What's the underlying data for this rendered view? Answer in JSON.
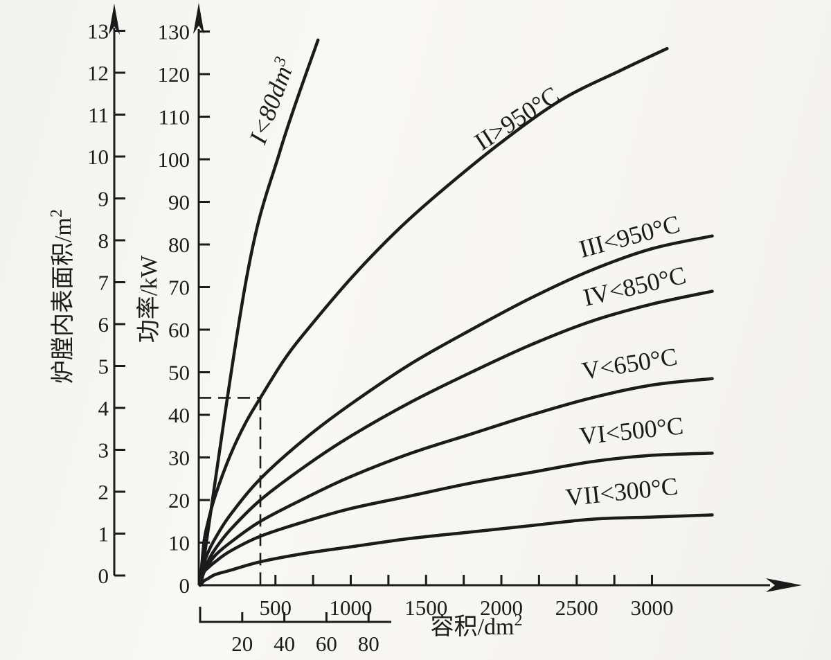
{
  "page": {
    "background": "#f6f5f1",
    "ink": "#1b1b1b"
  },
  "chart_data": {
    "type": "line",
    "title": "",
    "x_axis_main": {
      "title": "容积/dm",
      "title_sup": "2",
      "range": [
        0,
        3950
      ],
      "labeled_ticks": [
        500,
        1000,
        1500,
        2000,
        2500,
        3000
      ],
      "minor_tick_step": 250
    },
    "x_axis_secondary": {
      "ticks": [
        20,
        40,
        60,
        80
      ],
      "max": 90
    },
    "y_axis_power": {
      "title": "功率/kW",
      "range": [
        0,
        130
      ],
      "ticks": [
        0,
        10,
        20,
        30,
        40,
        50,
        60,
        70,
        80,
        90,
        100,
        110,
        120,
        130
      ]
    },
    "y_axis_area": {
      "title": "炉膛内表面积/m",
      "title_sup": "2",
      "range": [
        0,
        13
      ],
      "ticks": [
        0,
        1,
        2,
        3,
        4,
        5,
        6,
        7,
        8,
        9,
        10,
        11,
        12,
        13
      ]
    },
    "series": [
      {
        "id": "I",
        "label_pre": "I<80dm",
        "label_sup": "3",
        "x_scale": "secondary",
        "points": [
          [
            0,
            0
          ],
          [
            22,
            72
          ],
          [
            38,
            102
          ],
          [
            56,
            128
          ]
        ]
      },
      {
        "id": "II",
        "label": "II>950°C",
        "x_scale": "main",
        "points": [
          [
            0,
            0
          ],
          [
            25,
            10
          ],
          [
            50,
            14.5
          ],
          [
            100,
            21
          ],
          [
            200,
            30.5
          ],
          [
            300,
            38
          ],
          [
            400,
            44
          ],
          [
            550,
            52.5
          ],
          [
            700,
            59.5
          ],
          [
            1000,
            72
          ],
          [
            1300,
            83
          ],
          [
            1600,
            92.5
          ],
          [
            2000,
            104
          ],
          [
            2400,
            114
          ],
          [
            2800,
            121
          ],
          [
            3100,
            126
          ]
        ]
      },
      {
        "id": "III",
        "label": "III<950°C",
        "x_scale": "main",
        "points": [
          [
            0,
            0
          ],
          [
            25,
            5
          ],
          [
            50,
            7.5
          ],
          [
            100,
            11
          ],
          [
            200,
            16.5
          ],
          [
            400,
            25
          ],
          [
            700,
            34.5
          ],
          [
            1000,
            42.5
          ],
          [
            1400,
            52
          ],
          [
            1800,
            60
          ],
          [
            2200,
            67.5
          ],
          [
            2600,
            74
          ],
          [
            3000,
            79
          ],
          [
            3400,
            82
          ]
        ]
      },
      {
        "id": "IV",
        "label": "IV<850°C",
        "x_scale": "main",
        "points": [
          [
            0,
            0
          ],
          [
            25,
            3.5
          ],
          [
            50,
            5.5
          ],
          [
            100,
            8.5
          ],
          [
            200,
            13
          ],
          [
            400,
            20
          ],
          [
            700,
            28
          ],
          [
            1000,
            35
          ],
          [
            1400,
            43
          ],
          [
            1800,
            50
          ],
          [
            2200,
            56.5
          ],
          [
            2600,
            62
          ],
          [
            3000,
            66
          ],
          [
            3400,
            69
          ]
        ]
      },
      {
        "id": "V",
        "label": "V<650°C",
        "x_scale": "main",
        "points": [
          [
            0,
            0
          ],
          [
            25,
            3
          ],
          [
            50,
            4.5
          ],
          [
            100,
            7
          ],
          [
            200,
            10
          ],
          [
            400,
            15
          ],
          [
            700,
            20.5
          ],
          [
            1000,
            25.5
          ],
          [
            1400,
            31
          ],
          [
            1800,
            35.5
          ],
          [
            2200,
            40
          ],
          [
            2600,
            44
          ],
          [
            3000,
            47
          ],
          [
            3400,
            48.5
          ]
        ]
      },
      {
        "id": "VI",
        "label": "VI<500°C",
        "x_scale": "main",
        "points": [
          [
            0,
            0
          ],
          [
            25,
            3
          ],
          [
            50,
            4
          ],
          [
            100,
            5.5
          ],
          [
            200,
            8
          ],
          [
            400,
            11.5
          ],
          [
            700,
            15
          ],
          [
            1000,
            18
          ],
          [
            1400,
            21
          ],
          [
            1800,
            24
          ],
          [
            2200,
            26.5
          ],
          [
            2600,
            29
          ],
          [
            3000,
            30.5
          ],
          [
            3400,
            31
          ]
        ]
      },
      {
        "id": "VII",
        "label": "VII<300°C",
        "x_scale": "main",
        "points": [
          [
            0,
            0
          ],
          [
            25,
            1
          ],
          [
            50,
            1.5
          ],
          [
            100,
            2.5
          ],
          [
            200,
            3.5
          ],
          [
            400,
            5.5
          ],
          [
            700,
            7.5
          ],
          [
            1000,
            9
          ],
          [
            1400,
            11
          ],
          [
            1800,
            12.5
          ],
          [
            2200,
            14
          ],
          [
            2600,
            15.5
          ],
          [
            3000,
            16
          ],
          [
            3400,
            16.5
          ]
        ]
      }
    ],
    "annotation": {
      "volume_dm3": 400,
      "power_kw": 44
    }
  }
}
